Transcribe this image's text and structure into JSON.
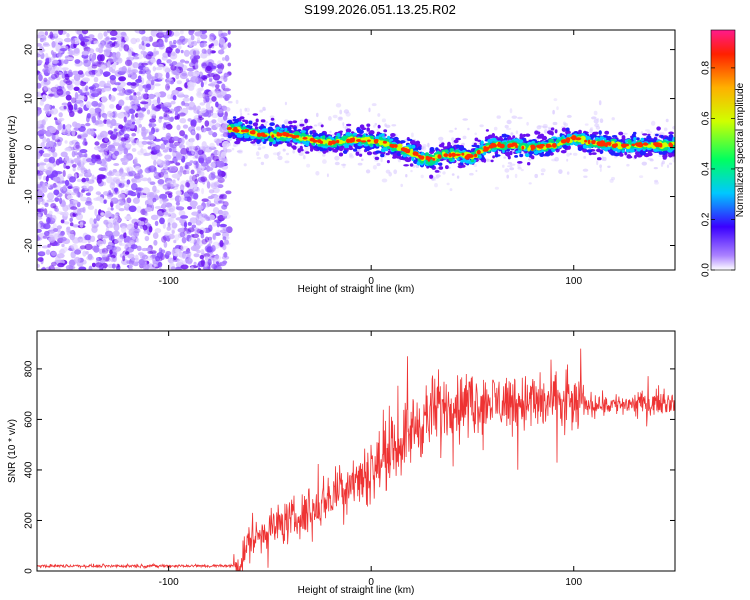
{
  "title": "S199.2026.051.13.25.R02",
  "chart_data": [
    {
      "type": "heatmap",
      "name": "spectrogram",
      "xlabel": "Height of straight line (km)",
      "ylabel": "Frequency (Hz)",
      "xlim": [
        -165,
        150
      ],
      "ylim": [
        -25,
        24
      ],
      "xticks": [
        -100,
        0,
        100
      ],
      "yticks": [
        -20,
        -10,
        0,
        10,
        20
      ],
      "noise_region_x": [
        -165,
        -70
      ],
      "signal_start_x": -70,
      "signal_ridge": {
        "x": [
          -70,
          -60,
          -50,
          -40,
          -30,
          -20,
          -10,
          0,
          10,
          20,
          25,
          30,
          35,
          40,
          45,
          50,
          55,
          60,
          70,
          80,
          90,
          100,
          110,
          120,
          130,
          140,
          150
        ],
        "y": [
          4,
          3,
          2.5,
          2.5,
          1.5,
          1,
          1.5,
          1.5,
          0.5,
          -1,
          -2,
          -2.5,
          -1.5,
          -1.5,
          -1.5,
          -2,
          -0.5,
          0.5,
          0.5,
          0,
          0.5,
          2,
          1,
          0.5,
          0.5,
          0.5,
          0.5
        ]
      },
      "colorbar": {
        "label": "Normalized spectral amplitude",
        "range": [
          0.0,
          0.95
        ],
        "ticks": [
          0.0,
          0.2,
          0.4,
          0.6,
          0.8
        ],
        "tick_labels": [
          "0.0",
          "0.2",
          "0.4",
          "0.6",
          "0.8"
        ]
      }
    },
    {
      "type": "line",
      "name": "snr",
      "xlabel": "Height of straight line (km)",
      "ylabel": "SNR (10 * v/v)",
      "xlim": [
        -165,
        150
      ],
      "ylim": [
        0,
        950
      ],
      "xticks": [
        -100,
        0,
        100
      ],
      "yticks": [
        0,
        200,
        400,
        600,
        800
      ],
      "color": "#ee3333",
      "trend": {
        "x": [
          -165,
          -100,
          -70,
          -65,
          -60,
          -50,
          -40,
          -30,
          -20,
          -10,
          0,
          10,
          20,
          30,
          35,
          40,
          60,
          80,
          100,
          120,
          150
        ],
        "y": [
          20,
          20,
          20,
          25,
          120,
          170,
          200,
          230,
          300,
          360,
          400,
          470,
          560,
          620,
          650,
          660,
          670,
          670,
          660,
          660,
          670
        ]
      }
    }
  ]
}
